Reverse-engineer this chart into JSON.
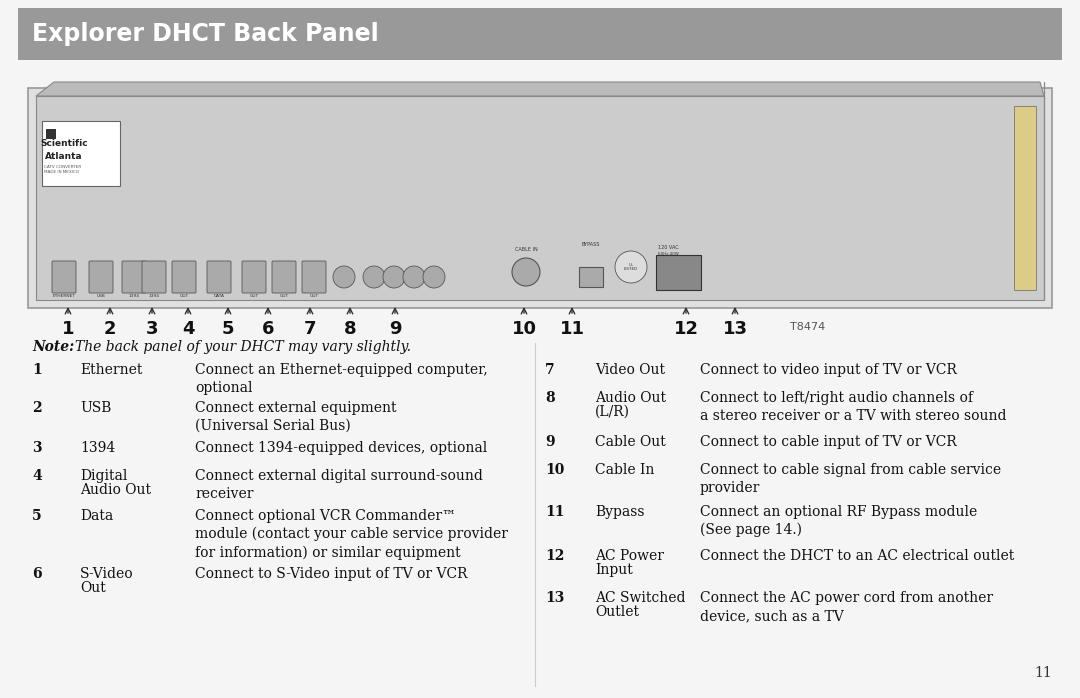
{
  "title": "Explorer DHCT Back Panel",
  "title_bg": "#999999",
  "title_color": "#ffffff",
  "title_fontsize": 17,
  "bg_color": "#f5f5f5",
  "page_number": "11",
  "note_text": "Note: The back panel of your DHCT may vary slightly.",
  "left_items": [
    {
      "num": "1",
      "label": "Ethernet",
      "label2": "",
      "desc": "Connect an Ethernet-equipped computer,\noptional"
    },
    {
      "num": "2",
      "label": "USB",
      "label2": "",
      "desc": "Connect external equipment\n(Universal Serial Bus)"
    },
    {
      "num": "3",
      "label": "1394",
      "label2": "",
      "desc": "Connect 1394-equipped devices, optional"
    },
    {
      "num": "4",
      "label": "Digital",
      "label2": "Audio Out",
      "desc": "Connect external digital surround-sound\nreceiver"
    },
    {
      "num": "5",
      "label": "Data",
      "label2": "",
      "desc": "Connect optional VCR Commander™\nmodule (contact your cable service provider\nfor information) or similar equipment"
    },
    {
      "num": "6",
      "label": "S-Video",
      "label2": "Out",
      "desc": "Connect to S-Video input of TV or VCR"
    }
  ],
  "right_items": [
    {
      "num": "7",
      "label": "Video Out",
      "label2": "",
      "desc": "Connect to video input of TV or VCR"
    },
    {
      "num": "8",
      "label": "Audio Out",
      "label2": "(L/R)",
      "desc": "Connect to left/right audio channels of\na stereo receiver or a TV with stereo sound"
    },
    {
      "num": "9",
      "label": "Cable Out",
      "label2": "",
      "desc": "Connect to cable input of TV or VCR"
    },
    {
      "num": "10",
      "label": "Cable In",
      "label2": "",
      "desc": "Connect to cable signal from cable service\nprovider"
    },
    {
      "num": "11",
      "label": "Bypass",
      "label2": "",
      "desc": "Connect an optional RF Bypass module\n(See page 14.)"
    },
    {
      "num": "12",
      "label": "AC Power",
      "label2": "Input",
      "desc": "Connect the DHCT to an AC electrical outlet"
    },
    {
      "num": "13",
      "label": "AC Switched",
      "label2": "Outlet",
      "desc": "Connect the AC power cord from another\ndevice, such as a TV"
    }
  ]
}
